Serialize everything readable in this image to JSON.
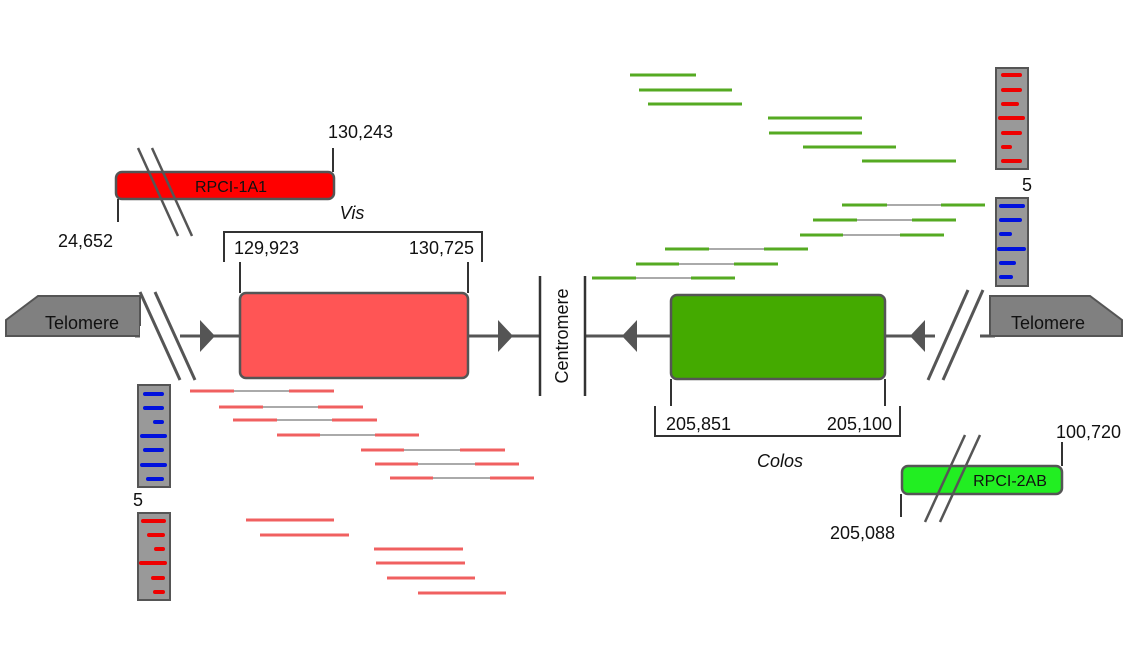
{
  "labels": {
    "telomere_left": "Telomere",
    "telomere_right": "Telomere",
    "centromere": "Centromere",
    "gene_left": "Vis",
    "gene_right": "Colos",
    "bac_left": "RPCI-1A1",
    "bac_right": "RPCI-2AB"
  },
  "coordinates": {
    "bac_left_start": "24,652",
    "bac_left_end": "130,243",
    "gene_left_start": "129,923",
    "gene_left_end": "130,725",
    "gene_right_start": "205,851",
    "gene_right_end": "205,100",
    "bac_right_start": "205,088",
    "bac_right_end": "100,720"
  },
  "gel_lane_counts": {
    "left_lane_label": "5",
    "right_lane_label": "5"
  },
  "colors": {
    "chromosome_line": "#555555",
    "telomere_fill": "#808080",
    "bac_left_fill": "#ff0000",
    "bac_right_fill": "#22ee22",
    "gene_left_fill": "#ff5555",
    "gene_right_fill": "#44aa00",
    "read_red": "#f06060",
    "read_green": "#55aa22",
    "gel_red_band": "#ee0000",
    "gel_blue_band": "#0011dd",
    "gel_background": "#999999"
  }
}
